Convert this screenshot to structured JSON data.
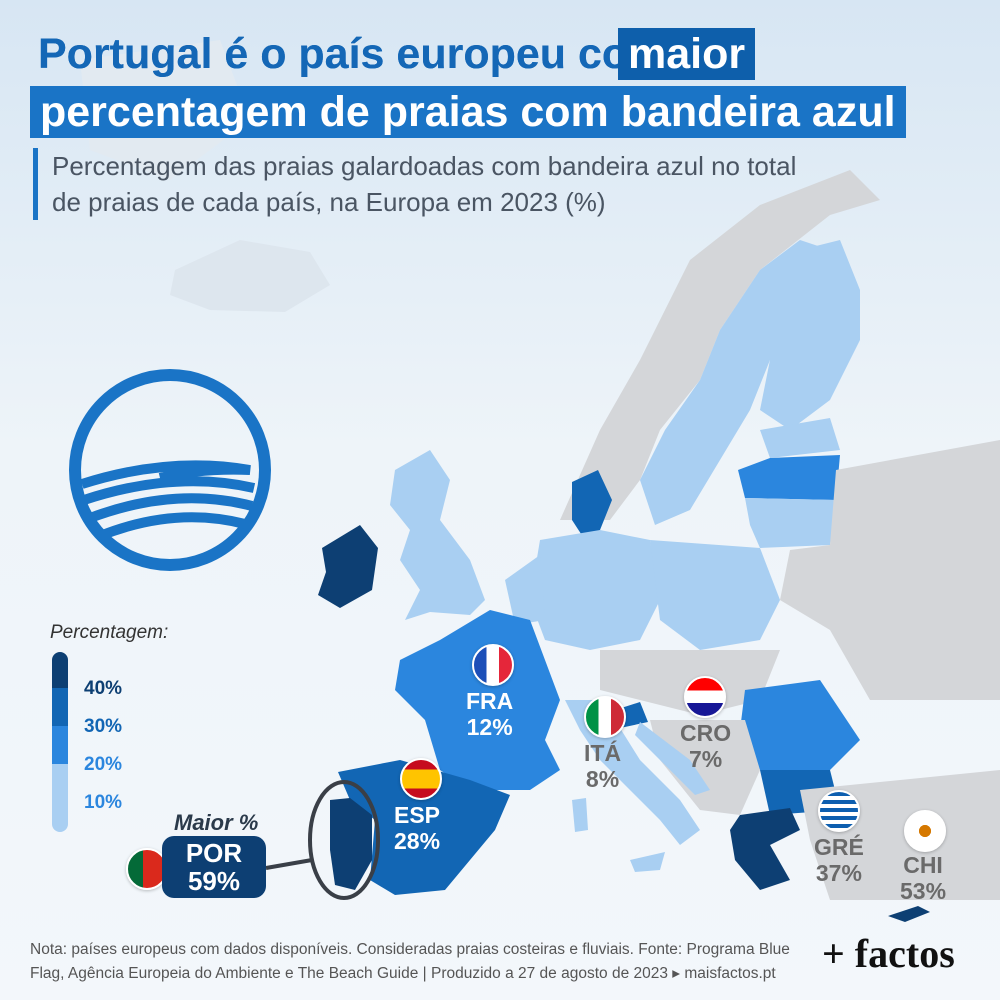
{
  "title": {
    "line1_prefix": "Portugal é o país europeu com",
    "line1_highlight": "maior",
    "line2": "percentagem de praias com bandeira azul"
  },
  "subtitle": "Percentagem das praias galardoadas com bandeira azul no total de praias de cada país, na Europa em 2023 (%)",
  "legend": {
    "title": "Percentagem:",
    "steps": [
      {
        "label": "40%",
        "color": "#0d3f73"
      },
      {
        "label": "30%",
        "color": "#1266b4"
      },
      {
        "label": "20%",
        "color": "#2b86de"
      },
      {
        "label": "10%",
        "color": "#a9cff2"
      }
    ]
  },
  "highlight": {
    "caption": "Maior %",
    "country": "POR",
    "value": "59%"
  },
  "countries": [
    {
      "code": "FRA",
      "value": "12%",
      "percent": 12
    },
    {
      "code": "ESP",
      "value": "28%",
      "percent": 28
    },
    {
      "code": "ITÁ",
      "value": "8%",
      "percent": 8
    },
    {
      "code": "CRO",
      "value": "7%",
      "percent": 7
    },
    {
      "code": "GRÉ",
      "value": "37%",
      "percent": 37
    },
    {
      "code": "CHI",
      "value": "53%",
      "percent": 53
    },
    {
      "code": "POR",
      "value": "59%",
      "percent": 59
    }
  ],
  "footnote": "Nota: países europeus com dados disponíveis. Consideradas praias costeiras e fluviais. Fonte: Programa Blue Flag, Agência Europeia do Ambiente e The Beach Guide | Produzido a 27 de agosto de 2023 ▸ maisfactos.pt",
  "brand": "+ factos",
  "colors": {
    "accent": "#1a74c6",
    "dark": "#0d3f73",
    "light": "#a9cff2",
    "mid": "#2b86de",
    "gray_land": "#d4d6d9"
  },
  "icons": [
    "blue-flag-logo-icon",
    "france-flag-icon",
    "spain-flag-icon",
    "italy-flag-icon",
    "croatia-flag-icon",
    "greece-flag-icon",
    "cyprus-flag-icon",
    "portugal-flag-icon"
  ]
}
